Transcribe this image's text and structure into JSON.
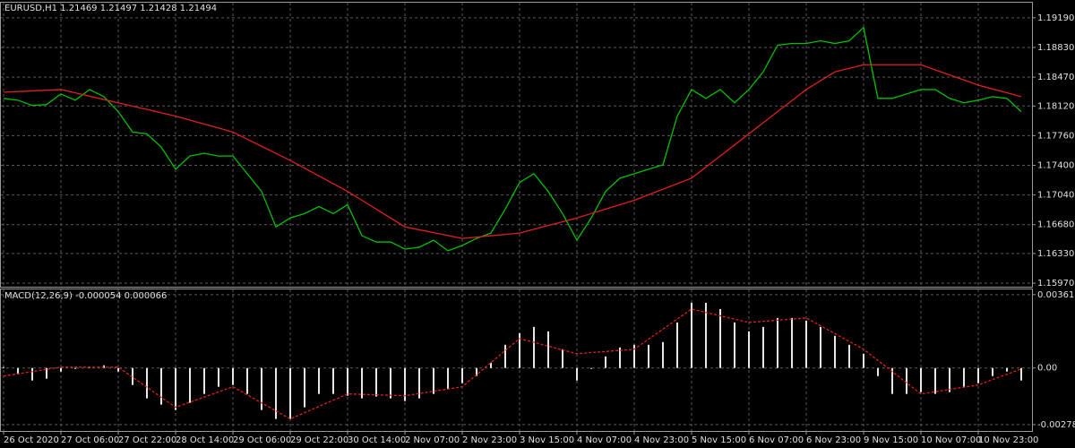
{
  "chart_data": [
    {
      "type": "line",
      "title": "EURUSD,H1  1.21469 1.21497 1.21428 1.21494",
      "ylim": [
        1.15927,
        1.19373
      ],
      "yticks": [
        {
          "value": 1.1919,
          "label": "1.19190"
        },
        {
          "value": 1.1883,
          "label": "1.18830"
        },
        {
          "value": 1.1847,
          "label": "1.18470"
        },
        {
          "value": 1.1812,
          "label": "1.18120"
        },
        {
          "value": 1.1776,
          "label": "1.17760"
        },
        {
          "value": 1.174,
          "label": "1.17400"
        },
        {
          "value": 1.1704,
          "label": "1.17040"
        },
        {
          "value": 1.1668,
          "label": "1.16680"
        },
        {
          "value": 1.1633,
          "label": "1.16330"
        },
        {
          "value": 1.1597,
          "label": "1.15970"
        }
      ],
      "grid": true,
      "series": [
        {
          "color": "#00c000",
          "values": [
            1.18212,
            1.1819,
            1.18126,
            1.18137,
            1.18266,
            1.1819,
            1.18319,
            1.18233,
            1.18051,
            1.17803,
            1.17782,
            1.17621,
            1.17352,
            1.17513,
            1.17545,
            1.17513,
            1.17513,
            1.17298,
            1.17083,
            1.16653,
            1.16761,
            1.16814,
            1.169,
            1.16814,
            1.16922,
            1.16546,
            1.1647,
            1.1647,
            1.16384,
            1.16406,
            1.16492,
            1.16363,
            1.16427,
            1.16513,
            1.16578,
            1.16868,
            1.17191,
            1.17298,
            1.17083,
            1.16814,
            1.16492,
            1.16761,
            1.17083,
            1.17244,
            1.17298,
            1.17352,
            1.17406,
            1.17997,
            1.18319,
            1.18212,
            1.18319,
            1.18158,
            1.18319,
            1.18534,
            1.18857,
            1.18878,
            1.18878,
            1.18911,
            1.18878,
            1.18911,
            1.19072,
            1.18212,
            1.18212,
            1.18266,
            1.18319,
            1.18319,
            1.18212,
            1.18158,
            1.1819,
            1.18233,
            1.18212,
            1.18051
          ]
        },
        {
          "color": "#e02020",
          "values": [
            1.18287,
            1.18295,
            1.18303,
            1.18311,
            1.18319,
            1.18279,
            1.18239,
            1.18198,
            1.18158,
            1.18118,
            1.18078,
            1.18037,
            1.17997,
            1.17949,
            1.179,
            1.17852,
            1.17803,
            1.17717,
            1.17631,
            1.17545,
            1.17459,
            1.17365,
            1.17271,
            1.17177,
            1.17083,
            1.16976,
            1.16868,
            1.16761,
            1.16653,
            1.16618,
            1.16583,
            1.16548,
            1.16513,
            1.16529,
            1.16546,
            1.16562,
            1.16578,
            1.16624,
            1.1667,
            1.16715,
            1.16761,
            1.16815,
            1.16869,
            1.16922,
            1.16976,
            1.17043,
            1.1711,
            1.17177,
            1.17244,
            1.17379,
            1.17513,
            1.17648,
            1.17782,
            1.17916,
            1.18051,
            1.18185,
            1.18319,
            1.18427,
            1.18534,
            1.18577,
            1.1862,
            1.1862,
            1.1862,
            1.1862,
            1.1862,
            1.18558,
            1.18497,
            1.18435,
            1.18373,
            1.18326,
            1.1828,
            1.18233
          ]
        }
      ]
    },
    {
      "type": "bar",
      "title": "MACD(12,26,9) -0.000054 0.000066",
      "ylim": [
        -0.0031,
        0.00387
      ],
      "yticks": [
        0.003612,
        {
          "value": 0,
          "label": "0.00"
        },
        -0.002787
      ],
      "grid": true,
      "categories": [
        "26 Oct 2020",
        null,
        null,
        null,
        "27 Oct 06:00",
        null,
        null,
        null,
        "27 Oct 22:00",
        null,
        null,
        null,
        "28 Oct 14:00",
        null,
        null,
        null,
        "29 Oct 06:00",
        null,
        null,
        null,
        "29 Oct 22:00",
        null,
        null,
        null,
        "30 Oct 14:00",
        null,
        null,
        null,
        "2 Nov 07:00",
        null,
        null,
        null,
        "2 Nov 23:00",
        null,
        null,
        null,
        "3 Nov 15:00",
        null,
        null,
        null,
        "4 Nov 07:00",
        null,
        null,
        null,
        "4 Nov 23:00",
        null,
        null,
        null,
        "5 Nov 15:00",
        null,
        null,
        null,
        "6 Nov 07:00",
        null,
        null,
        null,
        "6 Nov 23:00",
        null,
        null,
        null,
        "9 Nov 15:00",
        null,
        null,
        null,
        "10 Nov 07:00",
        null,
        null,
        null,
        "10 Nov 23:00",
        null,
        null,
        null
      ],
      "series": [
        {
          "type": "bar",
          "color": "#e8e8e8",
          "values": [
            4.4e-05,
            -0.000308,
            -0.000616,
            -0.000528,
            -0.000176,
            -4.4e-05,
            4.4e-05,
            0.000132,
            -0.000176,
            -0.000836,
            -0.001496,
            -0.001804,
            -0.002068,
            -0.001716,
            -0.001276,
            -0.000924,
            -0.000836,
            -0.001276,
            -0.002068,
            -0.002508,
            -0.002508,
            -0.001936,
            -0.001276,
            -0.001276,
            -0.001364,
            -0.001496,
            -0.001408,
            -0.001496,
            -0.001628,
            -0.001496,
            -0.001276,
            -0.001056,
            -0.000748,
            -0.000396,
            0.000264,
            0.001144,
            0.001716,
            0.002024,
            0.001804,
            0.000924,
            -0.000616,
            -4.4e-05,
            0.000572,
            0.001012,
            0.001144,
            0.001144,
            0.001276,
            0.002244,
            0.003212,
            0.003212,
            0.002904,
            0.002244,
            0.001804,
            0.002024,
            0.002464,
            0.002464,
            0.002332,
            0.002024,
            0.001584,
            0.001144,
            0.000704,
            -0.000396,
            -0.001276,
            -0.001276,
            -0.001188,
            -0.001276,
            -0.001188,
            -0.000924,
            -0.000748,
            -0.000396,
            -0.000176,
            -0.000616
          ]
        },
        {
          "type": "line",
          "color": "#e02020",
          "values": [
            -0.000396,
            -0.000286,
            -0.000176,
            -6.6e-05,
            4.4e-05,
            4.4e-05,
            4.4e-05,
            4.4e-05,
            4.4e-05,
            -0.000451,
            -0.000946,
            -0.001441,
            -0.001936,
            -0.001683,
            -0.00143,
            -0.001177,
            -0.000924,
            -0.00132,
            -0.001716,
            -0.002112,
            -0.002508,
            -0.0022,
            -0.001892,
            -0.001584,
            -0.001276,
            -0.001298,
            -0.00132,
            -0.001342,
            -0.001364,
            -0.001254,
            -0.001144,
            -0.001034,
            -0.000924,
            -0.00033,
            0.000264,
            0.000858,
            0.001452,
            0.001265,
            0.001078,
            0.000891,
            0.000704,
            0.000759,
            0.000814,
            0.000869,
            0.000924,
            0.001419,
            0.001914,
            0.002409,
            0.002904,
            0.002739,
            0.002574,
            0.002409,
            0.002244,
            0.002299,
            0.002354,
            0.002409,
            0.002464,
            0.002079,
            0.001694,
            0.001309,
            0.000924,
            0.000374,
            -0.000176,
            -0.000726,
            -0.001276,
            -0.001166,
            -0.001056,
            -0.000946,
            -0.000836,
            -0.000572,
            -0.000308,
            -4.4e-05
          ]
        }
      ]
    }
  ]
}
